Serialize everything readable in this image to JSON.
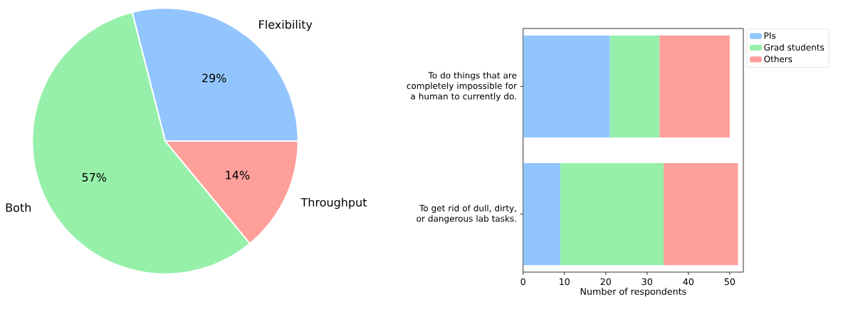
{
  "chart_data": [
    {
      "type": "pie",
      "categories": [
        "Flexibility",
        "Both",
        "Throughput"
      ],
      "values": [
        29,
        57,
        14
      ],
      "colors": [
        "#92c5fe",
        "#96f0aa",
        "#ff9f9a"
      ],
      "value_labels": [
        "29%",
        "57%",
        "14%"
      ]
    },
    {
      "type": "bar",
      "orientation": "horizontal",
      "stacked": true,
      "categories": [
        "To do things that are completely impossible for a human to currently do.",
        "To get rid of dull, dirty, or dangerous lab tasks."
      ],
      "series": [
        {
          "name": "PIs",
          "color": "#92c5fe",
          "values": [
            21,
            9
          ]
        },
        {
          "name": "Grad students",
          "color": "#96f0aa",
          "values": [
            12,
            25
          ]
        },
        {
          "name": "Others",
          "color": "#ff9f9a",
          "values": [
            17,
            18
          ]
        }
      ],
      "xlim": [
        0,
        53.3
      ],
      "xticks": [
        0,
        10,
        20,
        30,
        40,
        50
      ],
      "xlabel": "Number of respondents",
      "legend": "top right"
    }
  ]
}
